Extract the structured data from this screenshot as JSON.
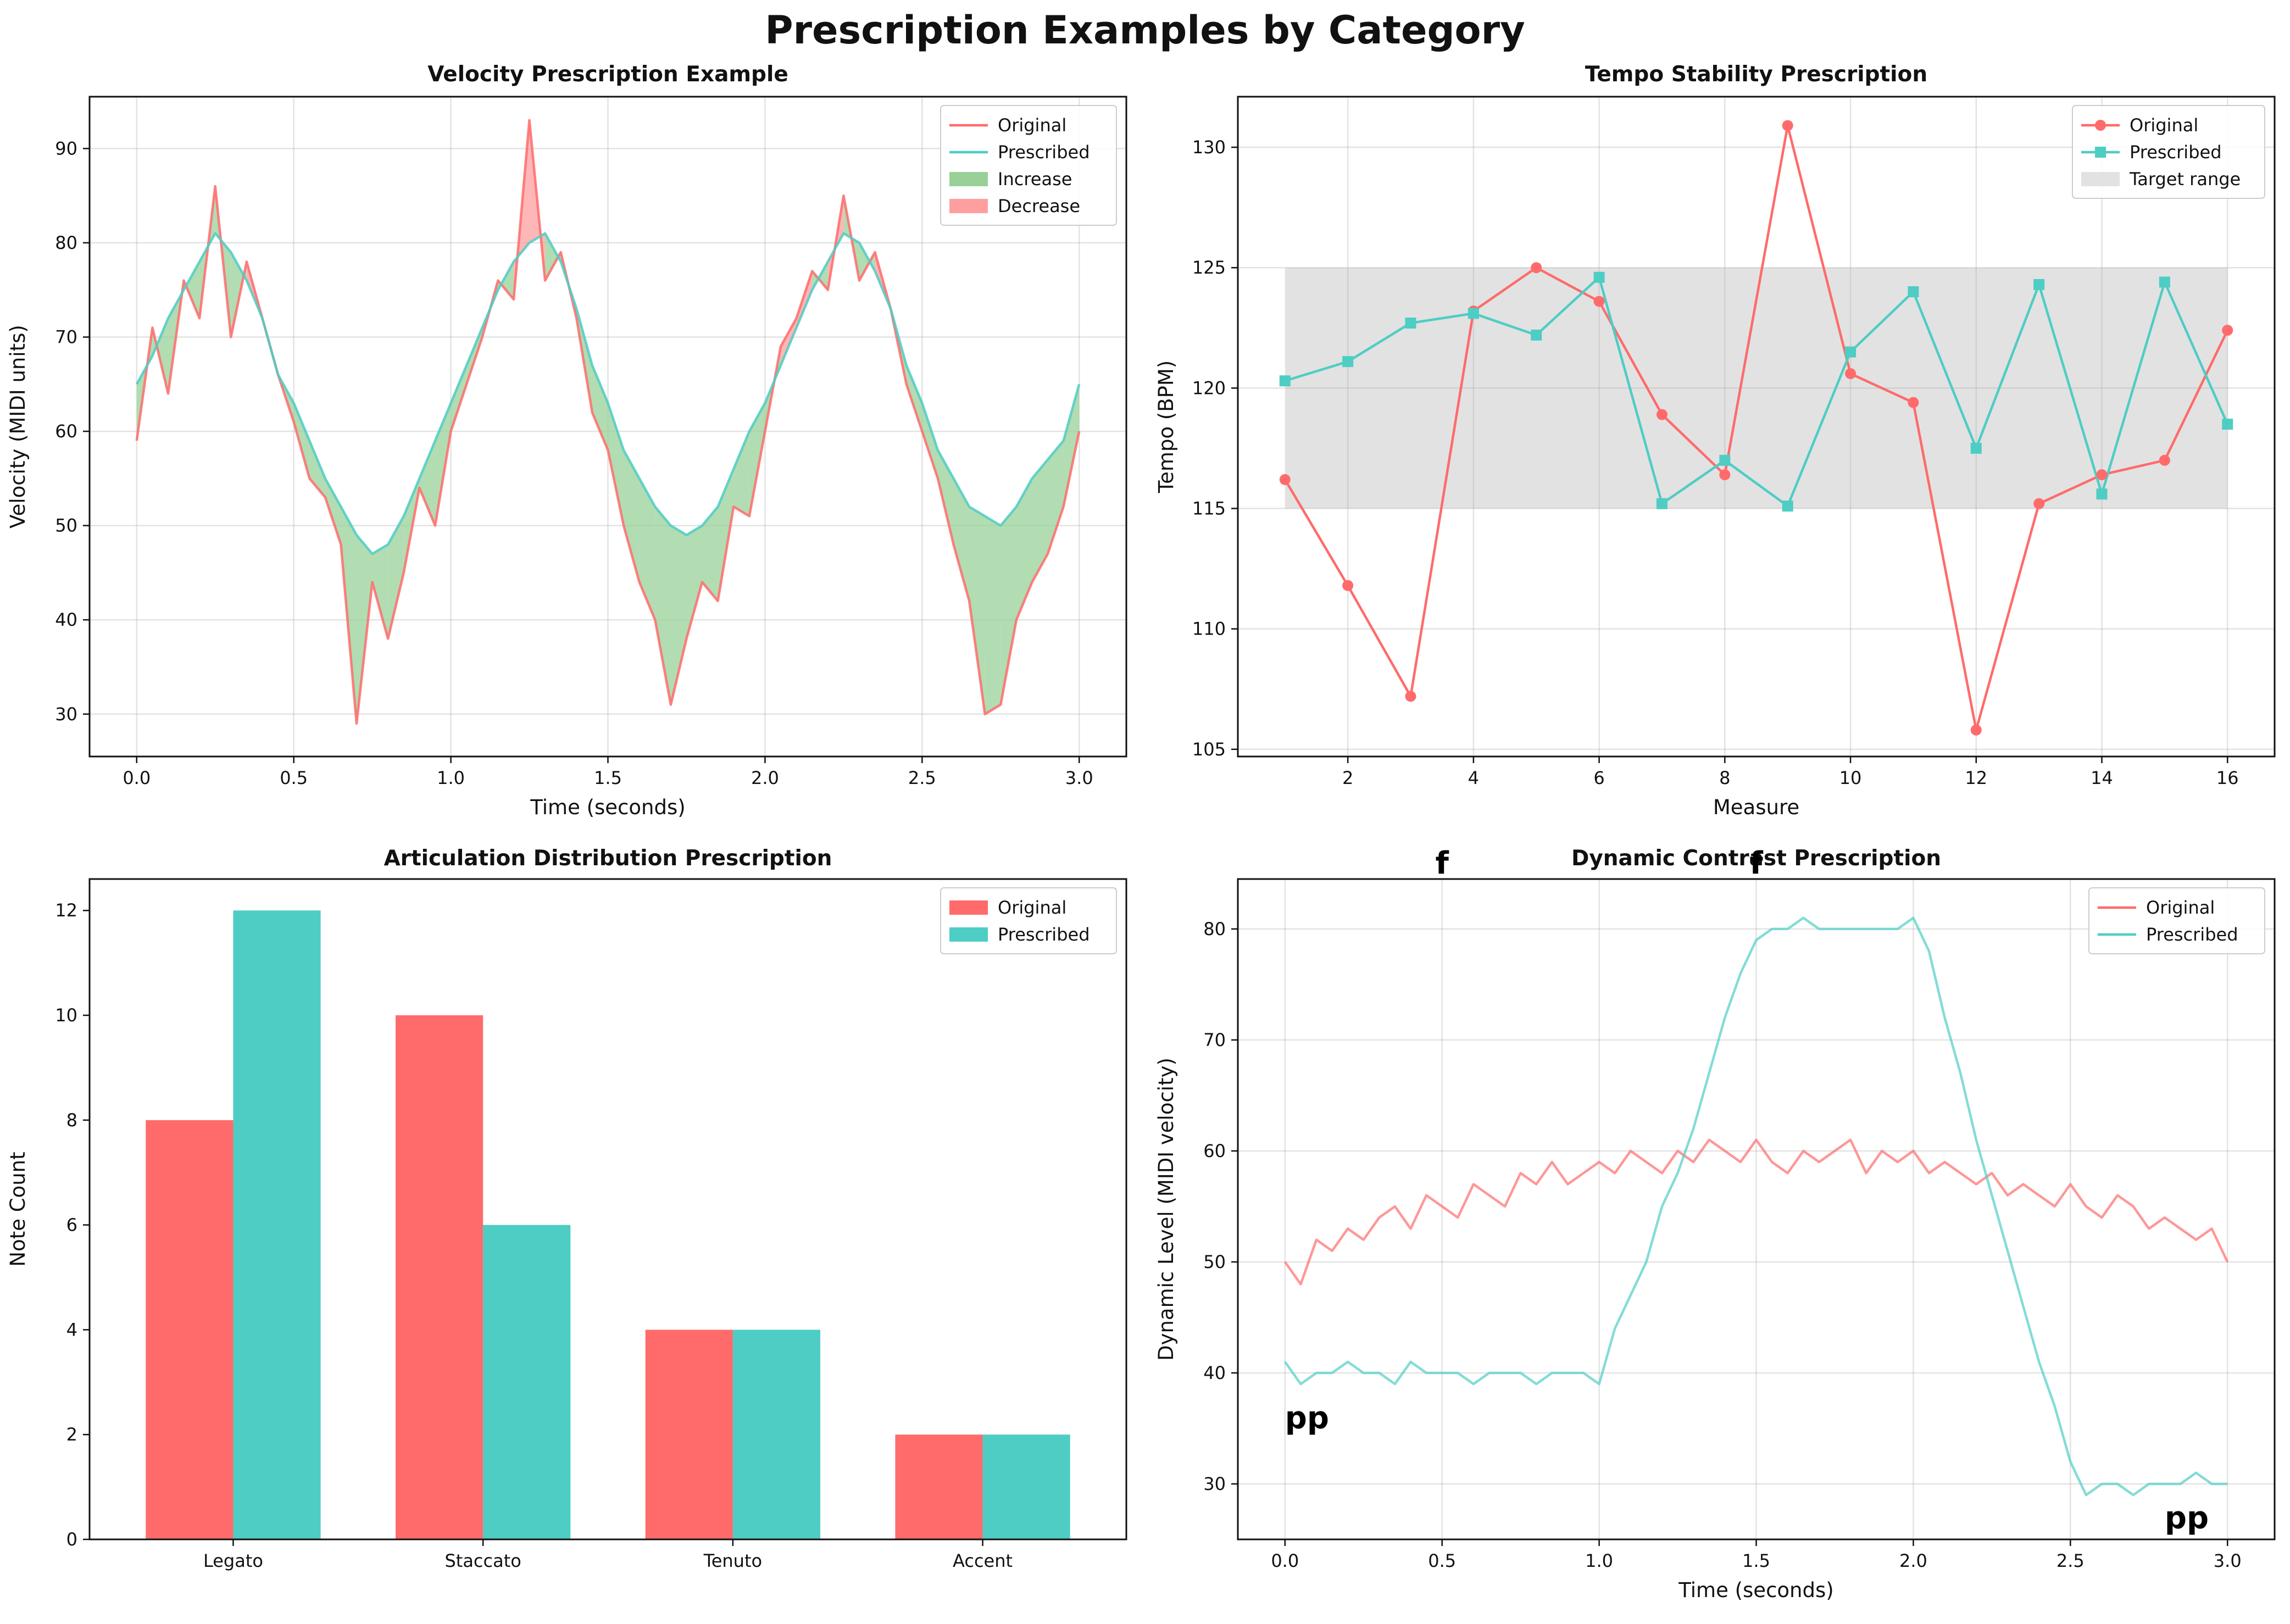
{
  "figure": {
    "title": "Prescription Examples by Category"
  },
  "colors": {
    "original": "#ff6b6b",
    "prescribed": "#4ecdc4",
    "increase": "#98d098",
    "decrease": "#ff9e9e",
    "target": "#d3d3d3"
  },
  "chart_data": [
    {
      "id": "velocity",
      "type": "line",
      "title": "Velocity Prescription Example",
      "xlabel": "Time (seconds)",
      "ylabel": "Velocity (MIDI units)",
      "xlim": [
        -0.15,
        3.15
      ],
      "ylim": [
        25.5,
        95.5
      ],
      "xticks": [
        0.0,
        0.5,
        1.0,
        1.5,
        2.0,
        2.5,
        3.0
      ],
      "xtick_labels": [
        "0.0",
        "0.5",
        "1.0",
        "1.5",
        "2.0",
        "2.5",
        "3.0"
      ],
      "yticks": [
        30,
        40,
        50,
        60,
        70,
        80,
        90
      ],
      "ytick_labels": [
        "30",
        "40",
        "50",
        "60",
        "70",
        "80",
        "90"
      ],
      "grid": true,
      "legend_position": "top-right",
      "legend": [
        "Original",
        "Prescribed",
        "Increase",
        "Decrease"
      ],
      "x": [
        0.0,
        0.05,
        0.1,
        0.15,
        0.2,
        0.25,
        0.3,
        0.35,
        0.4,
        0.45,
        0.5,
        0.55,
        0.6,
        0.65,
        0.7,
        0.75,
        0.8,
        0.85,
        0.9,
        0.95,
        1.0,
        1.05,
        1.1,
        1.15,
        1.2,
        1.25,
        1.3,
        1.35,
        1.4,
        1.45,
        1.5,
        1.55,
        1.6,
        1.65,
        1.7,
        1.75,
        1.8,
        1.85,
        1.9,
        1.95,
        2.0,
        2.05,
        2.1,
        2.15,
        2.2,
        2.25,
        2.3,
        2.35,
        2.4,
        2.45,
        2.5,
        2.55,
        2.6,
        2.65,
        2.7,
        2.75,
        2.8,
        2.85,
        2.9,
        2.95,
        3.0
      ],
      "series": [
        {
          "name": "Original",
          "values": [
            59,
            71,
            64,
            76,
            72,
            86,
            70,
            78,
            72,
            66,
            61,
            55,
            53,
            48,
            29,
            44,
            38,
            45,
            54,
            50,
            60,
            65,
            70,
            76,
            74,
            93,
            76,
            79,
            72,
            62,
            58,
            50,
            44,
            40,
            31,
            38,
            44,
            42,
            52,
            51,
            60,
            69,
            72,
            77,
            75,
            85,
            76,
            79,
            73,
            65,
            60,
            55,
            48,
            42,
            30,
            31,
            40,
            44,
            47,
            52,
            60
          ]
        },
        {
          "name": "Prescribed",
          "values": [
            65,
            68,
            72,
            75,
            78,
            81,
            79,
            76,
            72,
            66,
            63,
            59,
            55,
            52,
            49,
            47,
            48,
            51,
            55,
            59,
            63,
            67,
            71,
            75,
            78,
            80,
            81,
            78,
            73,
            67,
            63,
            58,
            55,
            52,
            50,
            49,
            50,
            52,
            56,
            60,
            63,
            67,
            71,
            75,
            78,
            81,
            80,
            77,
            73,
            67,
            63,
            58,
            55,
            52,
            51,
            50,
            52,
            55,
            57,
            59,
            65
          ]
        }
      ]
    },
    {
      "id": "tempo",
      "type": "line",
      "title": "Tempo Stability Prescription",
      "xlabel": "Measure",
      "ylabel": "Tempo (BPM)",
      "xlim": [
        0.25,
        16.75
      ],
      "ylim": [
        104.7,
        132.1
      ],
      "xticks": [
        2,
        4,
        6,
        8,
        10,
        12,
        14,
        16
      ],
      "xtick_labels": [
        "2",
        "4",
        "6",
        "8",
        "10",
        "12",
        "14",
        "16"
      ],
      "yticks": [
        105,
        110,
        115,
        120,
        125,
        130
      ],
      "ytick_labels": [
        "105",
        "110",
        "115",
        "120",
        "125",
        "130"
      ],
      "grid": true,
      "legend_position": "top-right",
      "legend": [
        "Original",
        "Prescribed",
        "Target range"
      ],
      "target_range": [
        115,
        125
      ],
      "x": [
        1,
        2,
        3,
        4,
        5,
        6,
        7,
        8,
        9,
        10,
        11,
        12,
        13,
        14,
        15,
        16
      ],
      "series": [
        {
          "name": "Original",
          "marker": "circle",
          "values": [
            116.2,
            111.8,
            107.2,
            123.2,
            125.0,
            123.6,
            118.9,
            116.4,
            130.9,
            120.6,
            119.4,
            105.8,
            115.2,
            116.4,
            117.0,
            122.4
          ]
        },
        {
          "name": "Prescribed",
          "marker": "square",
          "values": [
            120.3,
            121.1,
            122.7,
            123.1,
            122.2,
            124.6,
            115.2,
            117.0,
            115.1,
            121.5,
            124.0,
            117.5,
            124.3,
            115.6,
            124.4,
            118.5
          ]
        }
      ]
    },
    {
      "id": "articulation",
      "type": "bar",
      "title": "Articulation Distribution Prescription",
      "xlabel": "",
      "ylabel": "Note Count",
      "ylim": [
        0,
        12.6
      ],
      "yticks": [
        0,
        2,
        4,
        6,
        8,
        10,
        12
      ],
      "ytick_labels": [
        "0",
        "2",
        "4",
        "6",
        "8",
        "10",
        "12"
      ],
      "grid": false,
      "legend_position": "top-right",
      "legend": [
        "Original",
        "Prescribed"
      ],
      "categories": [
        "Legato",
        "Staccato",
        "Tenuto",
        "Accent"
      ],
      "series": [
        {
          "name": "Original",
          "values": [
            8,
            10,
            4,
            2
          ]
        },
        {
          "name": "Prescribed",
          "values": [
            12,
            6,
            4,
            2
          ]
        }
      ]
    },
    {
      "id": "dynamic",
      "type": "line",
      "title": "Dynamic Contrast Prescription",
      "xlabel": "Time (seconds)",
      "ylabel": "Dynamic Level (MIDI velocity)",
      "xlim": [
        -0.15,
        3.15
      ],
      "ylim": [
        25,
        84.5
      ],
      "xticks": [
        0.0,
        0.5,
        1.0,
        1.5,
        2.0,
        2.5,
        3.0
      ],
      "xtick_labels": [
        "0.0",
        "0.5",
        "1.0",
        "1.5",
        "2.0",
        "2.5",
        "3.0"
      ],
      "yticks": [
        30,
        40,
        50,
        60,
        70,
        80
      ],
      "ytick_labels": [
        "30",
        "40",
        "50",
        "60",
        "70",
        "80"
      ],
      "grid": true,
      "legend_position": "top-right",
      "legend": [
        "Original",
        "Prescribed"
      ],
      "annotations": [
        {
          "text": "pp",
          "x": 0.0,
          "y": 35
        },
        {
          "text": "f",
          "x": 0.5,
          "y": 85
        },
        {
          "text": "f",
          "x": 1.5,
          "y": 85
        },
        {
          "text": "pp",
          "x": 2.8,
          "y": 26
        }
      ],
      "x": [
        0.0,
        0.05,
        0.1,
        0.15,
        0.2,
        0.25,
        0.3,
        0.35,
        0.4,
        0.45,
        0.5,
        0.55,
        0.6,
        0.65,
        0.7,
        0.75,
        0.8,
        0.85,
        0.9,
        0.95,
        1.0,
        1.05,
        1.1,
        1.15,
        1.2,
        1.25,
        1.3,
        1.35,
        1.4,
        1.45,
        1.5,
        1.55,
        1.6,
        1.65,
        1.7,
        1.75,
        1.8,
        1.85,
        1.9,
        1.95,
        2.0,
        2.05,
        2.1,
        2.15,
        2.2,
        2.25,
        2.3,
        2.35,
        2.4,
        2.45,
        2.5,
        2.55,
        2.6,
        2.65,
        2.7,
        2.75,
        2.8,
        2.85,
        2.9,
        2.95,
        3.0
      ],
      "series": [
        {
          "name": "Original",
          "values": [
            50,
            48,
            52,
            51,
            53,
            52,
            54,
            55,
            53,
            56,
            55,
            54,
            57,
            56,
            55,
            58,
            57,
            59,
            57,
            58,
            59,
            58,
            60,
            59,
            58,
            60,
            59,
            61,
            60,
            59,
            61,
            59,
            58,
            60,
            59,
            60,
            61,
            58,
            60,
            59,
            60,
            58,
            59,
            58,
            57,
            58,
            56,
            57,
            56,
            55,
            57,
            55,
            54,
            56,
            55,
            53,
            54,
            53,
            52,
            53,
            50
          ]
        },
        {
          "name": "Prescribed",
          "values": [
            41,
            39,
            40,
            40,
            41,
            40,
            40,
            39,
            41,
            40,
            40,
            40,
            39,
            40,
            40,
            40,
            39,
            40,
            40,
            40,
            39,
            44,
            47,
            50,
            55,
            58,
            62,
            67,
            72,
            76,
            79,
            80,
            80,
            81,
            80,
            80,
            80,
            80,
            80,
            80,
            81,
            78,
            72,
            67,
            61,
            56,
            51,
            46,
            41,
            37,
            32,
            29,
            30,
            30,
            29,
            30,
            30,
            30,
            31,
            30,
            30
          ]
        }
      ]
    }
  ]
}
